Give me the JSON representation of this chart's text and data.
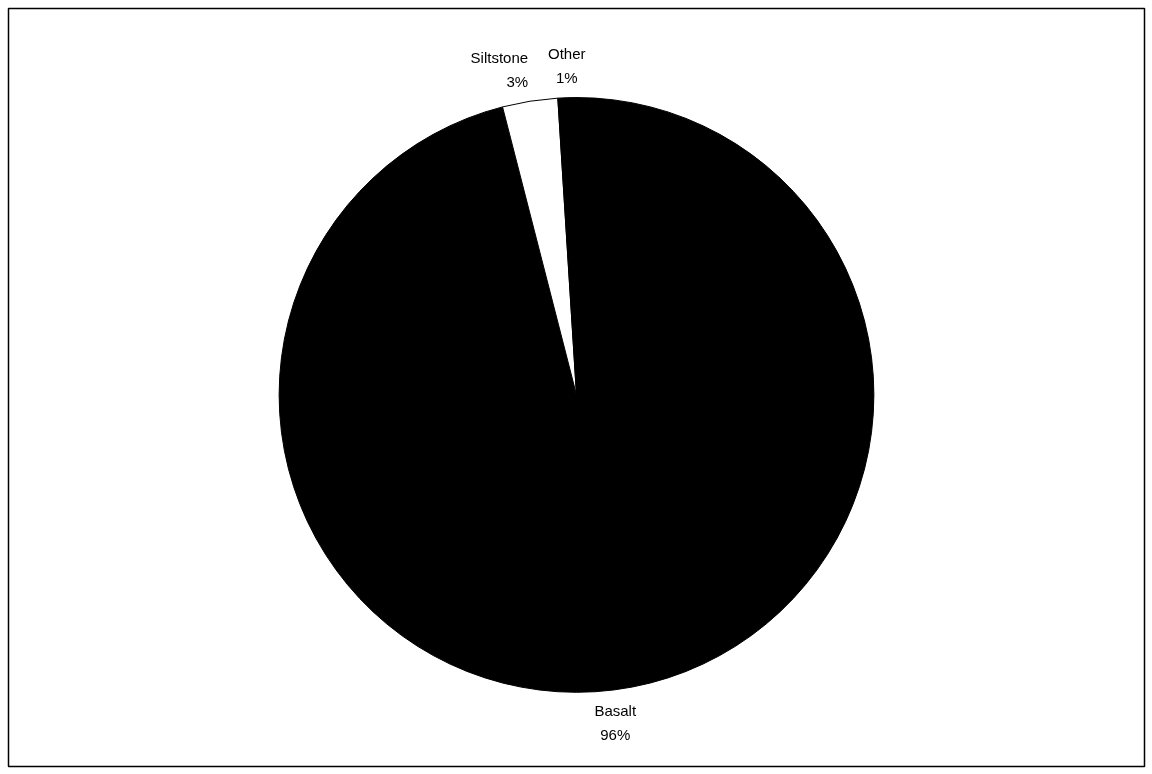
{
  "chart_data": {
    "type": "pie",
    "categories": [
      "Basalt",
      "Siltstone",
      "Other"
    ],
    "values": [
      96,
      3,
      1
    ],
    "colors": [
      "#000000",
      "#ffffff",
      "#000000"
    ],
    "value_labels": [
      "96%",
      "3%",
      "1%"
    ]
  }
}
